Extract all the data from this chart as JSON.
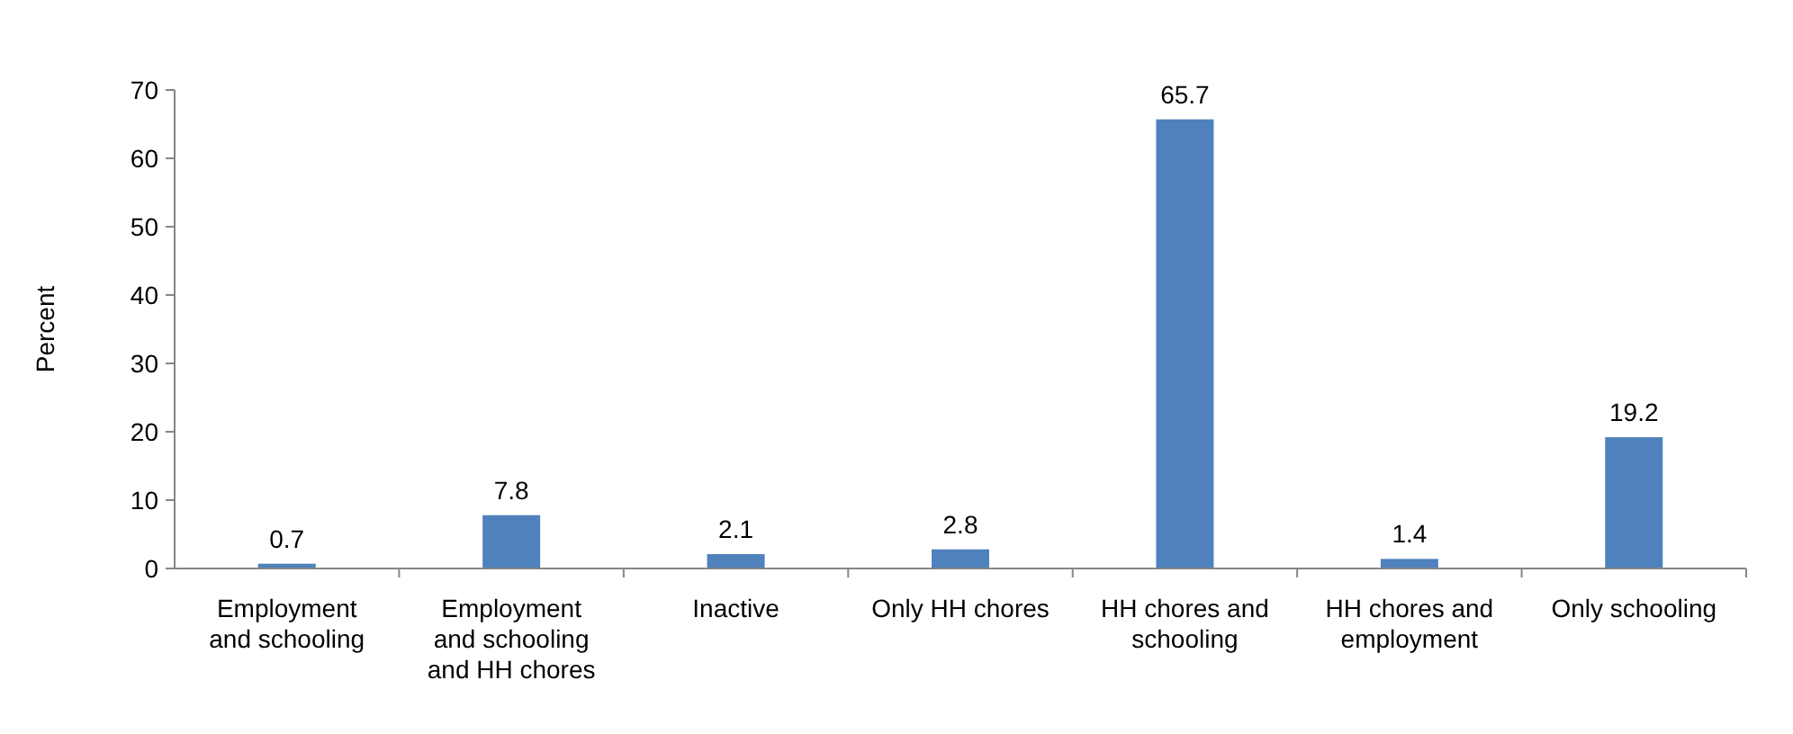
{
  "chart_data": {
    "type": "bar",
    "ylabel": "Percent",
    "categories": [
      "Employment and schooling",
      "Employment and schooling and HH chores",
      "Inactive",
      "Only HH chores",
      "HH chores and schooling",
      "HH chores and employment",
      "Only schooling"
    ],
    "values": [
      0.7,
      7.8,
      2.1,
      2.8,
      65.7,
      1.4,
      19.2
    ],
    "color": "#4f81bd",
    "ylim": [
      0,
      70
    ],
    "yticks": [
      0,
      10,
      20,
      30,
      40,
      50,
      60,
      70
    ],
    "grid": false,
    "data_labels": true
  }
}
